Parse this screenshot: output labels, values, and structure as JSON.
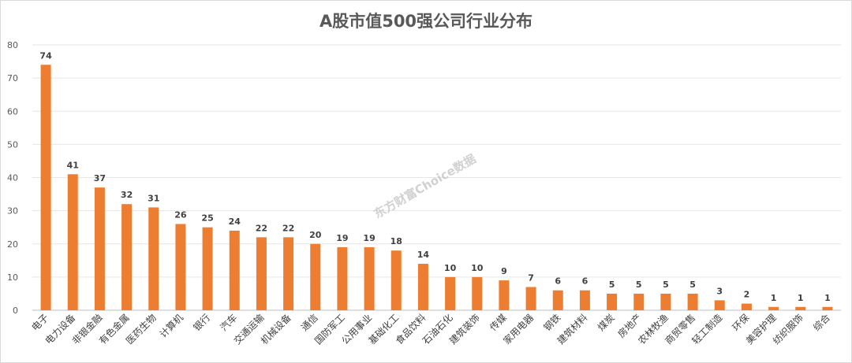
{
  "chart_data": {
    "type": "bar",
    "title": "A股市值500强公司行业分布",
    "categories": [
      "电子",
      "电力设备",
      "非银金融",
      "有色金属",
      "医药生物",
      "计算机",
      "银行",
      "汽车",
      "交通运输",
      "机械设备",
      "通信",
      "国防军工",
      "公用事业",
      "基础化工",
      "食品饮料",
      "石油石化",
      "建筑装饰",
      "传媒",
      "家用电器",
      "钢铁",
      "建筑材料",
      "煤炭",
      "房地产",
      "农林牧渔",
      "商贸零售",
      "轻工制造",
      "环保",
      "美容护理",
      "纺织服饰",
      "综合"
    ],
    "values": [
      74,
      41,
      37,
      32,
      31,
      26,
      25,
      24,
      22,
      22,
      20,
      19,
      19,
      18,
      14,
      10,
      10,
      9,
      7,
      6,
      6,
      5,
      5,
      5,
      5,
      3,
      2,
      1,
      1,
      1
    ],
    "ylim": [
      0,
      80
    ],
    "yticks": [
      0,
      10,
      20,
      30,
      40,
      50,
      60,
      70,
      80
    ],
    "bar_color": "#ED7D31",
    "grid": true,
    "data_labels": true
  },
  "watermark": "东方财富Choice数据"
}
